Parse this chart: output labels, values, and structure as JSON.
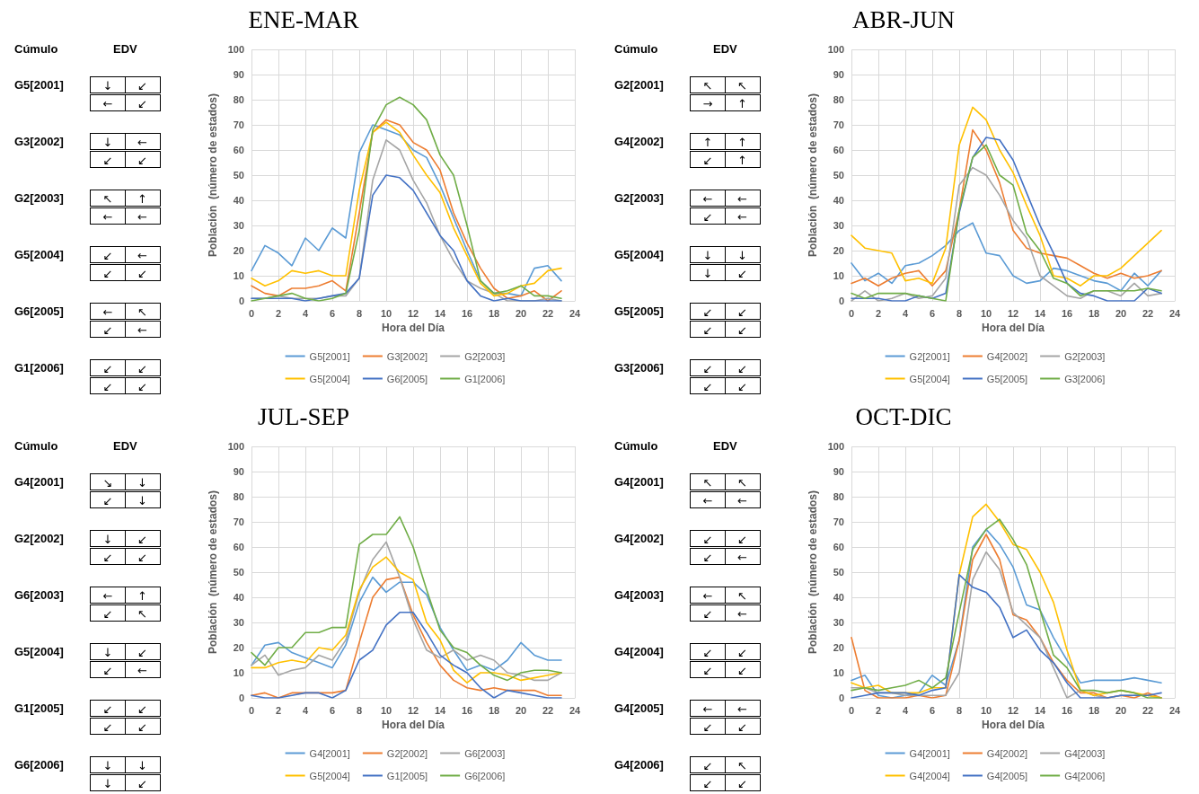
{
  "chart_data": [
    {
      "type": "other",
      "annotations": [
        "Cúmulo",
        "EDV",
        "G5[2001]",
        "↓",
        "↙",
        "←",
        "↙",
        "G3[2002]",
        "↓",
        "←",
        "↙",
        "↙",
        "G2[2003]",
        "↖",
        "↑",
        "←",
        "←",
        "G5[2004]",
        "↙",
        "←",
        "↙",
        "↙",
        "G6[2005]",
        "←",
        "↖",
        "↙",
        "←",
        "G1[2006]",
        "↙",
        "↙",
        "↙",
        "↙"
      ]
    },
    {
      "type": "line",
      "title": "ENE-MAR",
      "xlabel": "Hora del Día",
      "ylabel": "Población  (número de estados)",
      "xlim": [
        0,
        24
      ],
      "xticks": [
        0,
        2,
        4,
        6,
        8,
        10,
        12,
        14,
        16,
        18,
        20,
        22,
        24
      ],
      "ylim": [
        0,
        100
      ],
      "yticks": [
        0,
        10,
        20,
        30,
        40,
        50,
        60,
        70,
        80,
        90,
        100
      ],
      "grid": true,
      "legend": "bottom",
      "marker": "none",
      "x": [
        0,
        1,
        2,
        3,
        4,
        5,
        6,
        7,
        8,
        9,
        10,
        11,
        12,
        13,
        14,
        15,
        16,
        17,
        18,
        19,
        20,
        21,
        22,
        23
      ],
      "series": [
        {
          "name": "G5[2001]",
          "color": "#5b9bd5",
          "values": [
            12,
            22,
            19,
            14,
            25,
            20,
            29,
            25,
            59,
            70,
            68,
            66,
            60,
            57,
            46,
            33,
            20,
            8,
            3,
            3,
            2,
            13,
            14,
            8
          ]
        },
        {
          "name": "G3[2002]",
          "color": "#ed7d31",
          "values": [
            6,
            3,
            2,
            5,
            5,
            6,
            8,
            4,
            35,
            67,
            72,
            70,
            63,
            60,
            52,
            35,
            23,
            13,
            5,
            1,
            2,
            4,
            0,
            4
          ]
        },
        {
          "name": "G2[2003]",
          "color": "#a5a5a5",
          "values": [
            1,
            1,
            2,
            1,
            1,
            1,
            2,
            2,
            9,
            48,
            64,
            60,
            48,
            39,
            26,
            16,
            8,
            5,
            3,
            0,
            0,
            0,
            1,
            0
          ]
        },
        {
          "name": "G5[2004]",
          "color": "#ffc000",
          "values": [
            9,
            6,
            8,
            12,
            11,
            12,
            10,
            10,
            44,
            67,
            71,
            67,
            58,
            50,
            43,
            29,
            18,
            7,
            2,
            3,
            6,
            7,
            12,
            13
          ]
        },
        {
          "name": "G6[2005]",
          "color": "#4472c4",
          "values": [
            1,
            1,
            1,
            1,
            0,
            1,
            2,
            3,
            9,
            42,
            50,
            49,
            44,
            35,
            26,
            20,
            8,
            2,
            0,
            1,
            0,
            0,
            0,
            0
          ]
        },
        {
          "name": "G1[2006]",
          "color": "#70ad47",
          "values": [
            0,
            1,
            2,
            3,
            1,
            0,
            1,
            3,
            28,
            68,
            78,
            81,
            78,
            72,
            58,
            50,
            30,
            8,
            3,
            4,
            6,
            2,
            2,
            1
          ]
        }
      ]
    },
    {
      "type": "other",
      "annotations": [
        "Cúmulo",
        "EDV",
        "G2[2001]",
        "↖",
        "↖",
        "→",
        "↑",
        "G4[2002]",
        "↑",
        "↑",
        "↙",
        "↑",
        "G2[2003]",
        "←",
        "←",
        "↙",
        "←",
        "G5[2004]",
        "↓",
        "↓",
        "↓",
        "↙",
        "G5[2005]",
        "↙",
        "↙",
        "↙",
        "↙",
        "G3[2006]",
        "↙",
        "↙",
        "↙",
        "↙"
      ]
    },
    {
      "type": "line",
      "title": "ABR-JUN",
      "xlabel": "Hora del Día",
      "ylabel": "Población  (número de estados)",
      "xlim": [
        0,
        24
      ],
      "xticks": [
        0,
        2,
        4,
        6,
        8,
        10,
        12,
        14,
        16,
        18,
        20,
        22,
        24
      ],
      "ylim": [
        0,
        100
      ],
      "yticks": [
        0,
        10,
        20,
        30,
        40,
        50,
        60,
        70,
        80,
        90,
        100
      ],
      "grid": true,
      "legend": "bottom",
      "marker": "none",
      "x": [
        0,
        1,
        2,
        3,
        4,
        5,
        6,
        7,
        8,
        9,
        10,
        11,
        12,
        13,
        14,
        15,
        16,
        17,
        18,
        19,
        20,
        21,
        22,
        23
      ],
      "series": [
        {
          "name": "G2[2001]",
          "color": "#5b9bd5",
          "values": [
            15,
            8,
            11,
            7,
            14,
            15,
            18,
            22,
            28,
            31,
            19,
            18,
            10,
            7,
            8,
            13,
            12,
            10,
            8,
            7,
            4,
            11,
            6,
            12
          ]
        },
        {
          "name": "G4[2002]",
          "color": "#ed7d31",
          "values": [
            7,
            9,
            6,
            9,
            11,
            12,
            6,
            12,
            36,
            68,
            60,
            47,
            28,
            21,
            19,
            18,
            17,
            14,
            11,
            9,
            11,
            9,
            10,
            12
          ]
        },
        {
          "name": "G2[2003]",
          "color": "#a5a5a5",
          "values": [
            0,
            4,
            0,
            1,
            3,
            1,
            2,
            9,
            46,
            53,
            50,
            42,
            32,
            25,
            10,
            6,
            2,
            1,
            4,
            4,
            2,
            7,
            2,
            3
          ]
        },
        {
          "name": "G5[2004]",
          "color": "#ffc000",
          "values": [
            26,
            21,
            20,
            19,
            8,
            9,
            7,
            21,
            62,
            77,
            72,
            60,
            51,
            38,
            26,
            10,
            9,
            6,
            10,
            10,
            13,
            18,
            23,
            28
          ]
        },
        {
          "name": "G5[2005]",
          "color": "#4472c4",
          "values": [
            1,
            1,
            1,
            0,
            0,
            2,
            1,
            3,
            35,
            57,
            65,
            64,
            56,
            43,
            30,
            19,
            7,
            3,
            2,
            0,
            0,
            0,
            5,
            3
          ]
        },
        {
          "name": "G3[2006]",
          "color": "#70ad47",
          "values": [
            3,
            1,
            3,
            3,
            3,
            2,
            1,
            0,
            36,
            57,
            62,
            50,
            46,
            27,
            20,
            9,
            7,
            2,
            4,
            4,
            4,
            4,
            5,
            4
          ]
        }
      ]
    },
    {
      "type": "other",
      "annotations": [
        "Cúmulo",
        "EDV",
        "G4[2001]",
        "↘",
        "↓",
        "↙",
        "↓",
        "G2[2002]",
        "↓",
        "↙",
        "↙",
        "↙",
        "G6[2003]",
        "←",
        "↑",
        "↙",
        "↖",
        "G5[2004]",
        "↓",
        "↙",
        "↙",
        "←",
        "G1[2005]",
        "↙",
        "↙",
        "↙",
        "↙",
        "G6[2006]",
        "↓",
        "↓",
        "↓",
        "↙"
      ]
    },
    {
      "type": "line",
      "title": "JUL-SEP",
      "xlabel": "Hora del Día",
      "ylabel": "Población  (número de estados)",
      "xlim": [
        0,
        24
      ],
      "xticks": [
        0,
        2,
        4,
        6,
        8,
        10,
        12,
        14,
        16,
        18,
        20,
        22,
        24
      ],
      "ylim": [
        0,
        100
      ],
      "yticks": [
        0,
        10,
        20,
        30,
        40,
        50,
        60,
        70,
        80,
        90,
        100
      ],
      "grid": true,
      "legend": "bottom",
      "marker": "none",
      "x": [
        0,
        1,
        2,
        3,
        4,
        5,
        6,
        7,
        8,
        9,
        10,
        11,
        12,
        13,
        14,
        15,
        16,
        17,
        18,
        19,
        20,
        21,
        22,
        23
      ],
      "series": [
        {
          "name": "G4[2001]",
          "color": "#5b9bd5",
          "values": [
            13,
            21,
            22,
            18,
            16,
            14,
            12,
            21,
            38,
            48,
            42,
            46,
            46,
            41,
            28,
            19,
            11,
            13,
            11,
            15,
            22,
            17,
            15,
            15
          ]
        },
        {
          "name": "G2[2002]",
          "color": "#ed7d31",
          "values": [
            1,
            2,
            0,
            2,
            2,
            2,
            2,
            3,
            22,
            40,
            47,
            48,
            33,
            22,
            13,
            7,
            4,
            3,
            4,
            3,
            3,
            3,
            1,
            1
          ]
        },
        {
          "name": "G6[2003]",
          "color": "#a5a5a5",
          "values": [
            13,
            17,
            9,
            11,
            12,
            17,
            15,
            23,
            42,
            55,
            62,
            48,
            31,
            19,
            16,
            19,
            15,
            17,
            15,
            10,
            9,
            7,
            7,
            10
          ]
        },
        {
          "name": "G5[2004]",
          "color": "#ffc000",
          "values": [
            12,
            12,
            14,
            15,
            14,
            20,
            19,
            25,
            43,
            52,
            56,
            50,
            47,
            30,
            23,
            11,
            6,
            10,
            10,
            9,
            7,
            8,
            9,
            10
          ]
        },
        {
          "name": "G1[2005]",
          "color": "#4472c4",
          "values": [
            1,
            0,
            0,
            1,
            2,
            2,
            0,
            3,
            15,
            19,
            29,
            34,
            34,
            26,
            17,
            13,
            10,
            4,
            0,
            3,
            2,
            1,
            0,
            0
          ]
        },
        {
          "name": "G6[2006]",
          "color": "#70ad47",
          "values": [
            18,
            13,
            20,
            20,
            26,
            26,
            28,
            28,
            61,
            65,
            65,
            72,
            60,
            43,
            27,
            20,
            18,
            13,
            9,
            7,
            10,
            11,
            11,
            10
          ]
        }
      ]
    },
    {
      "type": "other",
      "annotations": [
        "Cúmulo",
        "EDV",
        "G4[2001]",
        "↖",
        "↖",
        "←",
        "←",
        "G4[2002]",
        "↙",
        "↙",
        "↙",
        "←",
        "G4[2003]",
        "←",
        "↖",
        "↙",
        "←",
        "G4[2004]",
        "↙",
        "↙",
        "↙",
        "↙",
        "G4[2005]",
        "←",
        "←",
        "↙",
        "↙",
        "G4[2006]",
        "↙",
        "↖",
        "↙",
        "↙"
      ]
    },
    {
      "type": "line",
      "title": "OCT-DIC",
      "xlabel": "Hora del Día",
      "ylabel": "Población  (número de estados)",
      "xlim": [
        0,
        24
      ],
      "xticks": [
        0,
        2,
        4,
        6,
        8,
        10,
        12,
        14,
        16,
        18,
        20,
        22,
        24
      ],
      "ylim": [
        0,
        100
      ],
      "yticks": [
        0,
        10,
        20,
        30,
        40,
        50,
        60,
        70,
        80,
        90,
        100
      ],
      "grid": true,
      "legend": "bottom",
      "marker": "none",
      "x": [
        0,
        1,
        2,
        3,
        4,
        5,
        6,
        7,
        8,
        9,
        10,
        11,
        12,
        13,
        14,
        15,
        16,
        17,
        18,
        19,
        20,
        21,
        22,
        23
      ],
      "series": [
        {
          "name": "G4[2001]",
          "color": "#5b9bd5",
          "values": [
            7,
            9,
            1,
            0,
            1,
            2,
            9,
            5,
            23,
            60,
            67,
            61,
            52,
            37,
            35,
            24,
            15,
            6,
            7,
            7,
            7,
            8,
            7,
            6
          ]
        },
        {
          "name": "G4[2002]",
          "color": "#ed7d31",
          "values": [
            24,
            3,
            0,
            0,
            0,
            1,
            0,
            1,
            23,
            55,
            65,
            55,
            33,
            31,
            24,
            14,
            7,
            2,
            2,
            0,
            1,
            0,
            2,
            0
          ]
        },
        {
          "name": "G4[2003]",
          "color": "#a5a5a5",
          "values": [
            4,
            4,
            2,
            2,
            1,
            1,
            1,
            1,
            10,
            47,
            58,
            51,
            34,
            29,
            24,
            12,
            0,
            3,
            1,
            0,
            1,
            1,
            1,
            0
          ]
        },
        {
          "name": "G4[2004]",
          "color": "#ffc000",
          "values": [
            6,
            4,
            5,
            2,
            2,
            2,
            4,
            4,
            49,
            72,
            77,
            70,
            61,
            59,
            50,
            38,
            19,
            3,
            1,
            2,
            3,
            2,
            1,
            0
          ]
        },
        {
          "name": "G4[2005]",
          "color": "#4472c4",
          "values": [
            0,
            1,
            2,
            2,
            2,
            1,
            3,
            4,
            49,
            44,
            42,
            36,
            24,
            27,
            19,
            14,
            6,
            0,
            0,
            0,
            1,
            1,
            1,
            2
          ]
        },
        {
          "name": "G4[2006]",
          "color": "#70ad47",
          "values": [
            3,
            4,
            3,
            4,
            5,
            7,
            4,
            8,
            34,
            59,
            67,
            71,
            63,
            53,
            35,
            17,
            12,
            3,
            3,
            2,
            3,
            2,
            0,
            0
          ]
        }
      ]
    }
  ]
}
